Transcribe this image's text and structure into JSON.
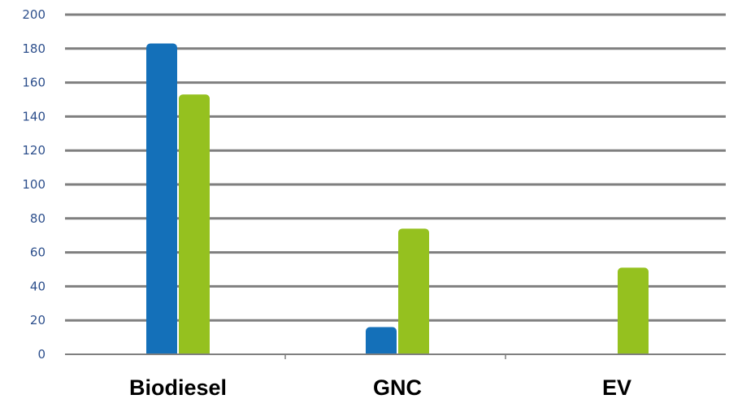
{
  "chart_data": {
    "type": "bar",
    "categories": [
      "Biodiesel",
      "GNC",
      "EV"
    ],
    "series": [
      {
        "color": "#1470b9",
        "values": [
          183,
          16,
          0
        ]
      },
      {
        "color": "#95c11f",
        "values": [
          153,
          74,
          51
        ]
      }
    ],
    "ylim": [
      0,
      200
    ],
    "yticks": [
      0,
      20,
      40,
      60,
      80,
      100,
      120,
      140,
      160,
      180,
      200
    ],
    "grid": true,
    "legend": "none",
    "title": "",
    "xlabel": "",
    "ylabel": ""
  }
}
